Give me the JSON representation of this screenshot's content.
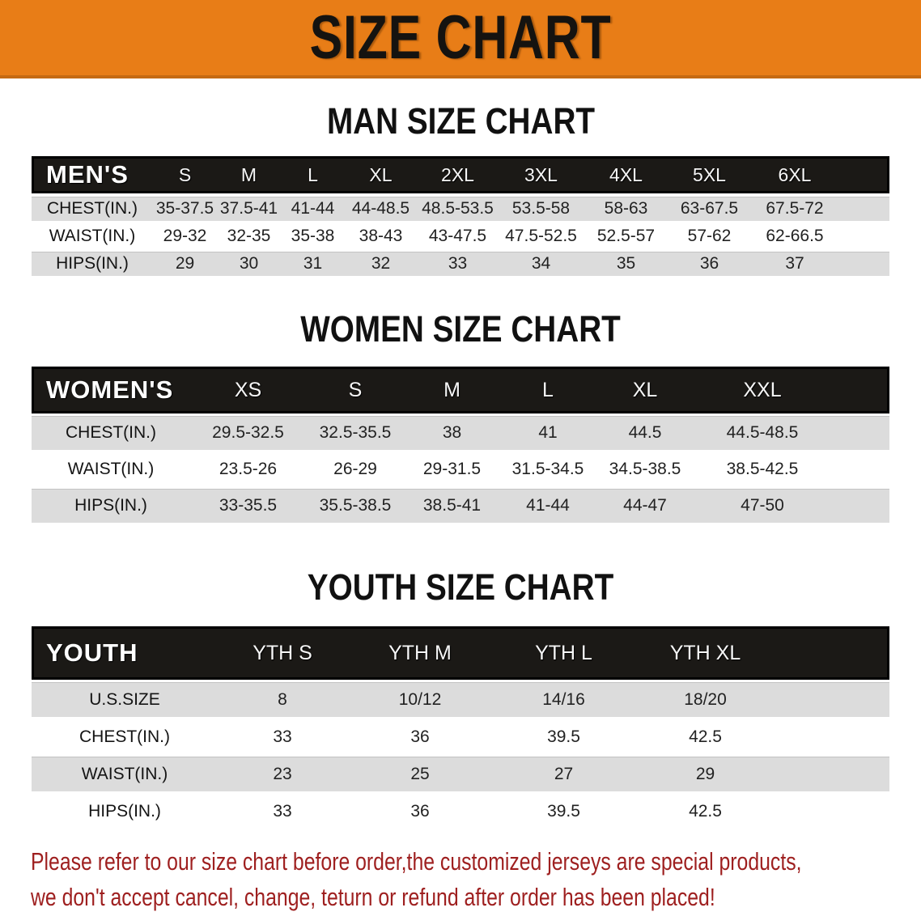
{
  "banner": {
    "title": "SIZE CHART"
  },
  "colors": {
    "banner_bg": "#e87d17",
    "header_bar_bg": "#1b1916",
    "row_gray": "#dcdcdc",
    "footer_red": "#9e1f1f"
  },
  "sections": [
    {
      "id": "men",
      "title": "MAN SIZE CHART",
      "corner_label": "MEN'S",
      "columns": [
        "S",
        "M",
        "L",
        "XL",
        "2XL",
        "3XL",
        "4XL",
        "5XL",
        "6XL"
      ],
      "rows": [
        {
          "label": "CHEST(IN.)",
          "values": [
            "35-37.5",
            "37.5-41",
            "41-44",
            "44-48.5",
            "48.5-53.5",
            "53.5-58",
            "58-63",
            "63-67.5",
            "67.5-72"
          ]
        },
        {
          "label": "WAIST(IN.)",
          "values": [
            "29-32",
            "32-35",
            "35-38",
            "38-43",
            "43-47.5",
            "47.5-52.5",
            "52.5-57",
            "57-62",
            "62-66.5"
          ]
        },
        {
          "label": "HIPS(IN.)",
          "values": [
            "29",
            "30",
            "31",
            "32",
            "33",
            "34",
            "35",
            "36",
            "37"
          ]
        }
      ]
    },
    {
      "id": "women",
      "title": "WOMEN SIZE CHART",
      "corner_label": "WOMEN'S",
      "columns": [
        "XS",
        "S",
        "M",
        "L",
        "XL",
        "XXL"
      ],
      "rows": [
        {
          "label": "CHEST(IN.)",
          "values": [
            "29.5-32.5",
            "32.5-35.5",
            "38",
            "41",
            "44.5",
            "44.5-48.5"
          ]
        },
        {
          "label": "WAIST(IN.)",
          "values": [
            "23.5-26",
            "26-29",
            "29-31.5",
            "31.5-34.5",
            "34.5-38.5",
            "38.5-42.5"
          ]
        },
        {
          "label": "HIPS(IN.)",
          "values": [
            "33-35.5",
            "35.5-38.5",
            "38.5-41",
            "41-44",
            "44-47",
            "47-50"
          ]
        }
      ]
    },
    {
      "id": "youth",
      "title": "YOUTH SIZE CHART",
      "corner_label": "YOUTH",
      "columns": [
        "YTH S",
        "YTH M",
        "YTH L",
        "YTH XL"
      ],
      "rows": [
        {
          "label": "U.S.SIZE",
          "values": [
            "8",
            "10/12",
            "14/16",
            "18/20"
          ]
        },
        {
          "label": "CHEST(IN.)",
          "values": [
            "33",
            "36",
            "39.5",
            "42.5"
          ]
        },
        {
          "label": "WAIST(IN.)",
          "values": [
            "23",
            "25",
            "27",
            "29"
          ]
        },
        {
          "label": "HIPS(IN.)",
          "values": [
            "33",
            "36",
            "39.5",
            "42.5"
          ]
        }
      ]
    }
  ],
  "footer": {
    "line1": "Please refer to our size chart before order,the customized jerseys are special products,",
    "line2": "we don't accept cancel, change, teturn or refund after order has been placed!"
  }
}
